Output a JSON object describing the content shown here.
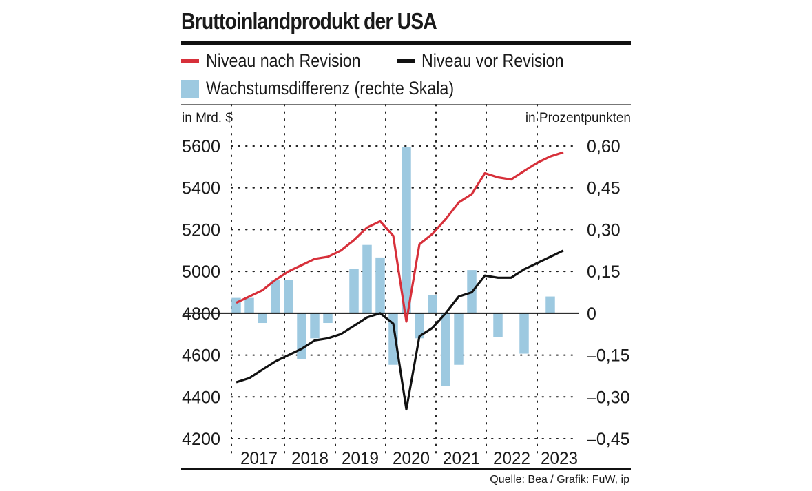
{
  "header": {
    "title": "Bruttoinlandprodukt der USA"
  },
  "legend": [
    {
      "label": "Niveau nach Revision",
      "color": "#d7303a",
      "kind": "line"
    },
    {
      "label": "Niveau vor Revision",
      "color": "#111111",
      "kind": "line"
    },
    {
      "label": "Wachstumsdifferenz (rechte Skala)",
      "color": "#9dc9e0",
      "kind": "bar"
    }
  ],
  "footer": {
    "source": "Quelle: Bea / Grafik: FuW, ip"
  },
  "chart_data": {
    "type": "line+bar",
    "title": "Bruttoinlandprodukt der USA",
    "y_left_label": "in Mrd. $",
    "y_right_label": "in Prozentpunkten",
    "y_left_range": [
      4200,
      5600
    ],
    "y_left_ticks": [
      "5600",
      "5400",
      "5200",
      "5000",
      "4800",
      "4600",
      "4400",
      "4200"
    ],
    "y_left_tick_values": [
      5600,
      5400,
      5200,
      5000,
      4800,
      4600,
      4400,
      4200
    ],
    "y_right_range": [
      -0.45,
      0.6
    ],
    "y_right_ticks": [
      "0,60",
      "0,45",
      "0,30",
      "0,15",
      "0",
      "–0,15",
      "–0,30",
      "–0,45"
    ],
    "y_right_tick_values": [
      0.6,
      0.45,
      0.3,
      0.15,
      0,
      -0.15,
      -0.3,
      -0.45
    ],
    "years": [
      "2017",
      "2018",
      "2019",
      "2020",
      "2021",
      "2022",
      "2023"
    ],
    "quarters": [
      "2017Q1",
      "2017Q2",
      "2017Q3",
      "2017Q4",
      "2018Q1",
      "2018Q2",
      "2018Q3",
      "2018Q4",
      "2019Q1",
      "2019Q2",
      "2019Q3",
      "2019Q4",
      "2020Q1",
      "2020Q2",
      "2020Q3",
      "2020Q4",
      "2021Q1",
      "2021Q2",
      "2021Q3",
      "2021Q4",
      "2022Q1",
      "2022Q2",
      "2022Q3",
      "2022Q4",
      "2023Q1",
      "2023Q2"
    ],
    "series": [
      {
        "name": "Niveau nach Revision",
        "axis": "left",
        "color": "#d7303a",
        "values": [
          4850,
          4880,
          4910,
          4960,
          5000,
          5030,
          5060,
          5070,
          5100,
          5150,
          5210,
          5240,
          5170,
          4760,
          5130,
          5180,
          5250,
          5330,
          5370,
          5470,
          5450,
          5440,
          5480,
          5520,
          5550,
          5570
        ]
      },
      {
        "name": "Niveau vor Revision",
        "axis": "left",
        "color": "#111111",
        "values": [
          4470,
          4490,
          4530,
          4570,
          4600,
          4630,
          4670,
          4680,
          4700,
          4740,
          4780,
          4800,
          4750,
          4340,
          4690,
          4730,
          4800,
          4880,
          4900,
          4980,
          4970,
          4970,
          5010,
          5040,
          5070,
          5100
        ]
      },
      {
        "name": "Wachstumsdifferenz",
        "axis": "right",
        "type": "bar",
        "color": "#9dc9e0",
        "values": [
          0.055,
          0.055,
          -0.035,
          0.12,
          0.12,
          -0.165,
          -0.09,
          -0.035,
          0.0,
          0.16,
          0.245,
          0.2,
          -0.185,
          0.595,
          -0.09,
          0.065,
          -0.26,
          -0.185,
          0.155,
          0.0,
          -0.085,
          0.0,
          -0.145,
          0.0,
          0.06,
          0.0
        ]
      }
    ]
  }
}
